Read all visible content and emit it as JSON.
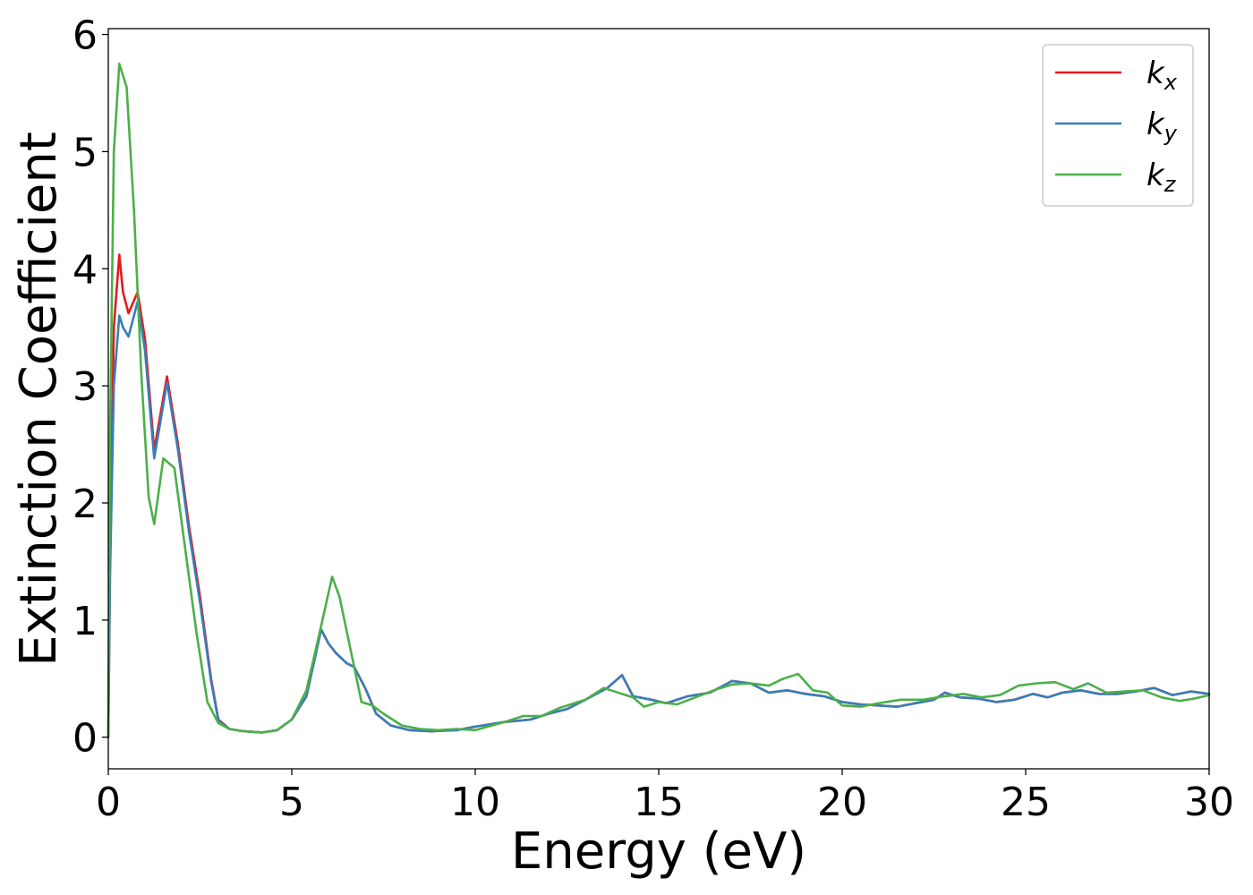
{
  "chart_data": {
    "type": "line",
    "title": "",
    "xlabel": "Energy (eV)",
    "ylabel": "Extinction Coefficient",
    "xlim": [
      0,
      30
    ],
    "ylim": [
      -0.27,
      6.05
    ],
    "xticks": [
      0,
      5,
      10,
      15,
      20,
      25,
      30
    ],
    "yticks": [
      0,
      1,
      2,
      3,
      4,
      5,
      6
    ],
    "grid": false,
    "legend": {
      "position": "top-right"
    },
    "series": [
      {
        "name": "k",
        "subscript": "x",
        "color": "#e41a1c",
        "x": [
          0,
          0.05,
          0.15,
          0.3,
          0.4,
          0.55,
          0.8,
          1.0,
          1.25,
          1.6,
          1.9,
          2.2,
          2.5,
          2.8,
          3.0,
          3.3,
          3.7,
          4.2,
          4.6,
          5.0,
          5.4,
          5.8,
          6.0,
          6.2,
          6.5,
          6.7,
          7.0,
          7.3,
          7.7,
          8.2,
          8.8,
          9.5,
          10.0,
          10.8,
          11.5,
          12.0,
          12.5,
          13.0,
          13.6,
          14.0,
          14.3,
          14.8,
          15.2,
          15.8,
          16.4,
          17.0,
          17.5,
          18.0,
          18.5,
          19.0,
          19.5,
          20.0,
          20.5,
          21.0,
          21.5,
          22.0,
          22.5,
          22.8,
          23.2,
          23.7,
          24.2,
          24.7,
          25.2,
          25.6,
          26.0,
          26.5,
          27.0,
          27.5,
          28.0,
          28.5,
          29.0,
          29.5,
          30.0
        ],
        "y": [
          0,
          1.6,
          3.5,
          4.12,
          3.8,
          3.62,
          3.8,
          3.4,
          2.45,
          3.08,
          2.5,
          1.8,
          1.2,
          0.5,
          0.15,
          0.07,
          0.05,
          0.04,
          0.06,
          0.15,
          0.35,
          0.92,
          0.8,
          0.72,
          0.63,
          0.6,
          0.42,
          0.2,
          0.1,
          0.06,
          0.05,
          0.06,
          0.09,
          0.13,
          0.15,
          0.2,
          0.24,
          0.32,
          0.42,
          0.53,
          0.35,
          0.32,
          0.29,
          0.35,
          0.38,
          0.48,
          0.46,
          0.38,
          0.4,
          0.37,
          0.35,
          0.3,
          0.28,
          0.27,
          0.26,
          0.29,
          0.32,
          0.38,
          0.34,
          0.33,
          0.3,
          0.32,
          0.37,
          0.34,
          0.38,
          0.4,
          0.37,
          0.37,
          0.39,
          0.42,
          0.36,
          0.39,
          0.37
        ]
      },
      {
        "name": "k",
        "subscript": "y",
        "color": "#377eb8",
        "x": [
          0,
          0.05,
          0.15,
          0.3,
          0.4,
          0.55,
          0.8,
          1.0,
          1.25,
          1.6,
          1.9,
          2.2,
          2.5,
          2.8,
          3.0,
          3.3,
          3.7,
          4.2,
          4.6,
          5.0,
          5.4,
          5.8,
          6.0,
          6.2,
          6.5,
          6.7,
          7.0,
          7.3,
          7.7,
          8.2,
          8.8,
          9.5,
          10.0,
          10.8,
          11.5,
          12.0,
          12.5,
          13.0,
          13.6,
          14.0,
          14.3,
          14.8,
          15.2,
          15.8,
          16.4,
          17.0,
          17.5,
          18.0,
          18.5,
          19.0,
          19.5,
          20.0,
          20.5,
          21.0,
          21.5,
          22.0,
          22.5,
          22.8,
          23.2,
          23.7,
          24.2,
          24.7,
          25.2,
          25.6,
          26.0,
          26.5,
          27.0,
          27.5,
          28.0,
          28.5,
          29.0,
          29.5,
          30.0
        ],
        "y": [
          0,
          1.4,
          3.0,
          3.6,
          3.5,
          3.42,
          3.72,
          3.3,
          2.38,
          3.03,
          2.45,
          1.75,
          1.15,
          0.48,
          0.14,
          0.07,
          0.05,
          0.04,
          0.06,
          0.15,
          0.35,
          0.92,
          0.8,
          0.72,
          0.63,
          0.6,
          0.42,
          0.2,
          0.1,
          0.06,
          0.05,
          0.06,
          0.09,
          0.13,
          0.15,
          0.2,
          0.24,
          0.32,
          0.42,
          0.53,
          0.35,
          0.32,
          0.29,
          0.35,
          0.38,
          0.48,
          0.46,
          0.38,
          0.4,
          0.37,
          0.35,
          0.3,
          0.28,
          0.27,
          0.26,
          0.29,
          0.32,
          0.38,
          0.34,
          0.33,
          0.3,
          0.32,
          0.37,
          0.34,
          0.38,
          0.4,
          0.37,
          0.37,
          0.39,
          0.42,
          0.36,
          0.39,
          0.37
        ]
      },
      {
        "name": "k",
        "subscript": "z",
        "color": "#4daf4a",
        "x": [
          0,
          0.05,
          0.15,
          0.3,
          0.5,
          0.7,
          0.9,
          1.1,
          1.25,
          1.5,
          1.8,
          2.1,
          2.4,
          2.7,
          3.0,
          3.3,
          3.7,
          4.2,
          4.6,
          5.0,
          5.4,
          5.8,
          6.1,
          6.3,
          6.6,
          6.9,
          7.2,
          7.5,
          8.0,
          8.5,
          9.0,
          9.5,
          10.0,
          10.8,
          11.3,
          11.8,
          12.3,
          13.0,
          13.5,
          14.0,
          14.3,
          14.6,
          15.0,
          15.5,
          16.0,
          16.5,
          17.0,
          17.5,
          18.0,
          18.4,
          18.8,
          19.2,
          19.6,
          20.0,
          20.5,
          21.0,
          21.6,
          22.2,
          22.8,
          23.3,
          23.8,
          24.3,
          24.8,
          25.3,
          25.8,
          26.3,
          26.7,
          27.2,
          27.7,
          28.2,
          28.7,
          29.2,
          29.6,
          30.0
        ],
        "y": [
          0,
          2.6,
          5.0,
          5.75,
          5.55,
          4.5,
          3.1,
          2.05,
          1.82,
          2.38,
          2.3,
          1.6,
          0.9,
          0.3,
          0.12,
          0.07,
          0.05,
          0.04,
          0.06,
          0.15,
          0.4,
          0.95,
          1.37,
          1.2,
          0.75,
          0.3,
          0.27,
          0.2,
          0.1,
          0.07,
          0.06,
          0.07,
          0.06,
          0.13,
          0.18,
          0.18,
          0.25,
          0.32,
          0.42,
          0.37,
          0.34,
          0.26,
          0.3,
          0.28,
          0.34,
          0.4,
          0.45,
          0.46,
          0.44,
          0.5,
          0.54,
          0.4,
          0.38,
          0.27,
          0.26,
          0.29,
          0.32,
          0.32,
          0.35,
          0.37,
          0.34,
          0.36,
          0.44,
          0.46,
          0.47,
          0.41,
          0.46,
          0.38,
          0.39,
          0.4,
          0.34,
          0.31,
          0.33,
          0.36
        ]
      }
    ]
  }
}
